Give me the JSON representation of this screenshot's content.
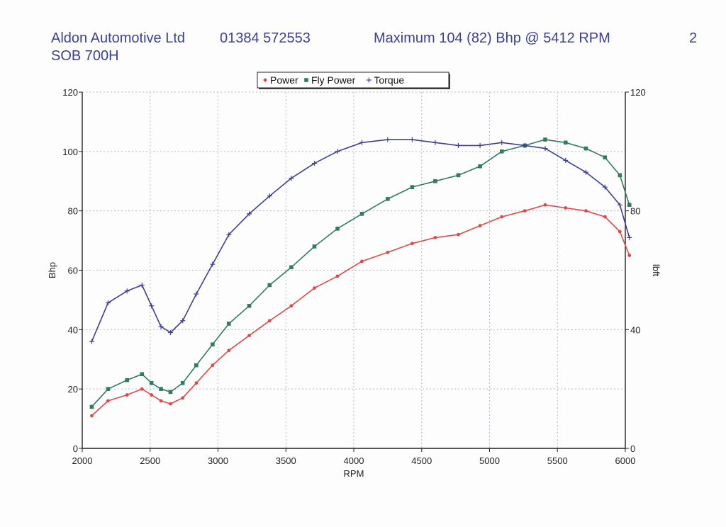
{
  "header": {
    "company": "Aldon Automotive Ltd",
    "phone": "01384 572553",
    "registration": "SOB 700H",
    "max_line": "Maximum 104 (82) Bhp @ 5412 RPM",
    "page_number": "2"
  },
  "colors": {
    "power": "#e04848",
    "fly_power": "#2f7d5e",
    "torque": "#3d3f94",
    "grid": "#b8b8c8",
    "header_text": "#3a3f9a"
  },
  "chart_data": {
    "type": "line",
    "xlabel": "RPM",
    "ylabel": "Bhp",
    "y2label": "lbft",
    "xlim": [
      2000,
      6000
    ],
    "ylim": [
      0,
      120
    ],
    "y2lim": [
      0,
      120
    ],
    "x_ticks": [
      2000,
      2500,
      3000,
      3500,
      4000,
      4500,
      5000,
      5500,
      6000
    ],
    "y_ticks": [
      0,
      20,
      40,
      60,
      80,
      100,
      120
    ],
    "y2_ticks": [
      0,
      40,
      80,
      120
    ],
    "grid": true,
    "legend_position": "top-center",
    "series": [
      {
        "name": "Power",
        "color_key": "power",
        "marker": "dot",
        "axis": "left",
        "x": [
          2070,
          2190,
          2330,
          2440,
          2510,
          2580,
          2650,
          2740,
          2840,
          2960,
          3080,
          3230,
          3380,
          3540,
          3710,
          3880,
          4060,
          4250,
          4430,
          4600,
          4770,
          4930,
          5090,
          5260,
          5410,
          5560,
          5710,
          5850,
          5960,
          6030
        ],
        "y": [
          11,
          16,
          18,
          20,
          18,
          16,
          15,
          17,
          22,
          28,
          33,
          38,
          43,
          48,
          54,
          58,
          63,
          66,
          69,
          71,
          72,
          75,
          78,
          80,
          82,
          81,
          80,
          78,
          73,
          65
        ]
      },
      {
        "name": "Fly Power",
        "color_key": "fly_power",
        "marker": "square",
        "axis": "left",
        "x": [
          2070,
          2190,
          2330,
          2440,
          2510,
          2580,
          2650,
          2740,
          2840,
          2960,
          3080,
          3230,
          3380,
          3540,
          3710,
          3880,
          4060,
          4250,
          4430,
          4600,
          4770,
          4930,
          5090,
          5260,
          5410,
          5560,
          5710,
          5850,
          5960,
          6030
        ],
        "y": [
          14,
          20,
          23,
          25,
          22,
          20,
          19,
          22,
          28,
          35,
          42,
          48,
          55,
          61,
          68,
          74,
          79,
          84,
          88,
          90,
          92,
          95,
          100,
          102,
          104,
          103,
          101,
          98,
          92,
          82
        ]
      },
      {
        "name": "Torque",
        "color_key": "torque",
        "marker": "plus",
        "axis": "right",
        "x": [
          2070,
          2190,
          2330,
          2440,
          2510,
          2580,
          2650,
          2740,
          2840,
          2960,
          3080,
          3230,
          3380,
          3540,
          3710,
          3880,
          4060,
          4250,
          4430,
          4600,
          4770,
          4930,
          5090,
          5260,
          5410,
          5560,
          5710,
          5850,
          5960,
          6030
        ],
        "y": [
          36,
          49,
          53,
          55,
          48,
          41,
          39,
          43,
          52,
          62,
          72,
          79,
          85,
          91,
          96,
          100,
          103,
          104,
          104,
          103,
          102,
          102,
          103,
          102,
          101,
          97,
          93,
          88,
          82,
          71
        ]
      }
    ]
  }
}
